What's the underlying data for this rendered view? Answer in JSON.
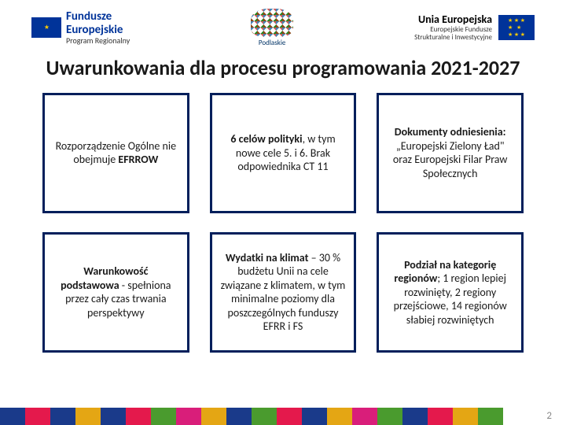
{
  "header": {
    "left": {
      "title": "Fundusze",
      "title2": "Europejskie",
      "subtitle": "Program Regionalny"
    },
    "center": {
      "label": "Podlaskie"
    },
    "right": {
      "title": "Unia Europejska",
      "subtitle1": "Europejskie Fundusze",
      "subtitle2": "Strukturalne i Inwestycyjne"
    }
  },
  "title": "Uwarunkowania dla procesu programowania 2021-2027",
  "cards": [
    {
      "html": "Rozporządzenie Ogólne nie obejmuje <b>EFRROW</b>"
    },
    {
      "html": "<b>6 celów polityki</b>, w tym nowe cele 5. i 6. Brak odpowiednika CT 11"
    },
    {
      "html": "<b>Dokumenty odniesienia:</b> „Europejski Zielony Ład\" oraz Europejski Filar Praw Społecznych"
    },
    {
      "html": "<b>Warunkowość podstawowa</b> - spełniona przez cały czas trwania perspektywy"
    },
    {
      "html": "<b>Wydatki na klimat</b> – 30 % budżetu Unii na cele związane z klimatem, w tym minimalne poziomy dla poszczególnych funduszy EFRR i FS"
    },
    {
      "html": "<b>Podział na kategorię regionów</b>; 1 region lepiej rozwinięty, 2 regiony przejściowe, 14 regionów słabiej rozwiniętych"
    }
  ],
  "footer_colors": [
    "#1a3a8a",
    "#e4194c",
    "#1a3a8a",
    "#e4a614",
    "#1a3a8a",
    "#e4194c",
    "#4a9b2e",
    "#d91e7a",
    "#e4a614",
    "#1a3a8a",
    "#4a9b2e",
    "#e4194c",
    "#1a3a8a",
    "#e4a614",
    "#d91e7a",
    "#4a9b2e",
    "#1a3a8a",
    "#e4194c",
    "#e4a614",
    "#4a9b2e"
  ],
  "page_number": "2"
}
